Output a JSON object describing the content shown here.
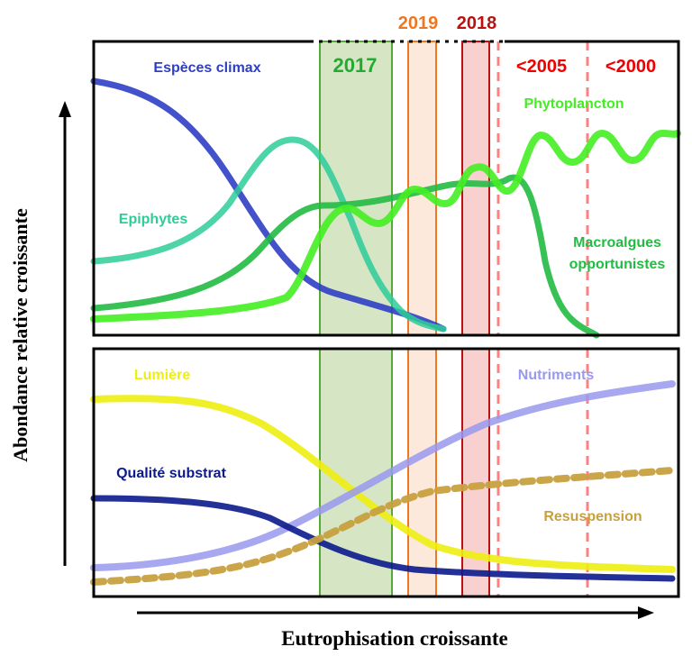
{
  "axes": {
    "x_title": "Eutrophisation croissante",
    "y_title": "Abondance relative croissante"
  },
  "periods": [
    {
      "label": "2017",
      "color": "#22aa33"
    },
    {
      "label": "2019",
      "color": "#ee7722"
    },
    {
      "label": "2018",
      "color": "#bb1111"
    },
    {
      "label": "<2005",
      "color": "#ee0000"
    },
    {
      "label": "<2000",
      "color": "#ee0000"
    }
  ],
  "top_panel": {
    "curves": [
      {
        "name": "Espèces climax",
        "color": "#2f3fc4"
      },
      {
        "name": "Epiphytes",
        "color": "#2ecc99"
      },
      {
        "name": "Phytoplancton",
        "color": "#44ee22"
      },
      {
        "name": "Macroalgues opportunistes",
        "line1": "Macroalgues",
        "line2": "opportunistes",
        "color": "#22bb44"
      }
    ]
  },
  "bottom_panel": {
    "curves": [
      {
        "name": "Lumière",
        "color": "#eeee11"
      },
      {
        "name": "Nutriments",
        "color": "#9999ee"
      },
      {
        "name": "Qualité substrat",
        "color": "#0b1a8c"
      },
      {
        "name": "Resuspension",
        "color": "#c8a040"
      }
    ]
  },
  "colors": {
    "band_2017": "#c8dcb0",
    "band_2019": "#fbe2cf",
    "band_2018": "#f8c4c4",
    "dashed": "#ff8080"
  }
}
